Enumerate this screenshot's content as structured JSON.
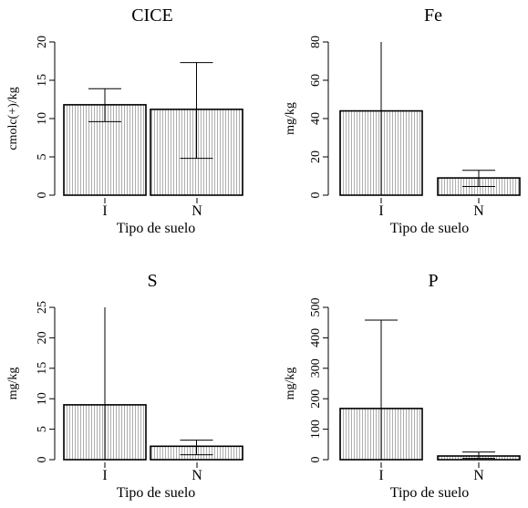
{
  "chart_data": [
    {
      "type": "bar",
      "title": "CICE",
      "xlabel": "Tipo de suelo",
      "ylabel": "cmolc(+)/kg",
      "categories": [
        "I",
        "N"
      ],
      "values": [
        11.8,
        11.2
      ],
      "error_low": [
        9.6,
        4.8
      ],
      "error_high": [
        13.9,
        17.3
      ],
      "ylim": [
        0,
        20
      ],
      "yticks": [
        0,
        5,
        10,
        15,
        20
      ]
    },
    {
      "type": "bar",
      "title": "Fe",
      "xlabel": "Tipo de suelo",
      "ylabel": "mg/kg",
      "categories": [
        "I",
        "N"
      ],
      "values": [
        44,
        9
      ],
      "error_low": [
        0,
        4.5
      ],
      "error_high": [
        80,
        13
      ],
      "ylim": [
        0,
        80
      ],
      "yticks": [
        0,
        20,
        40,
        60,
        80
      ]
    },
    {
      "type": "bar",
      "title": "S",
      "xlabel": "Tipo de suelo",
      "ylabel": "mg/kg",
      "categories": [
        "I",
        "N"
      ],
      "values": [
        9,
        2.2
      ],
      "error_low": [
        0,
        0.8
      ],
      "error_high": [
        25,
        3.2
      ],
      "ylim": [
        0,
        25
      ],
      "yticks": [
        0,
        5,
        10,
        15,
        20,
        25
      ]
    },
    {
      "type": "bar",
      "title": "P",
      "xlabel": "Tipo de suelo",
      "ylabel": "mg/kg",
      "categories": [
        "I",
        "N"
      ],
      "values": [
        168,
        12
      ],
      "error_low": [
        0,
        4
      ],
      "error_high": [
        458,
        25
      ],
      "ylim": [
        0,
        500
      ],
      "yticks": [
        0,
        100,
        200,
        300,
        400,
        500
      ]
    }
  ]
}
